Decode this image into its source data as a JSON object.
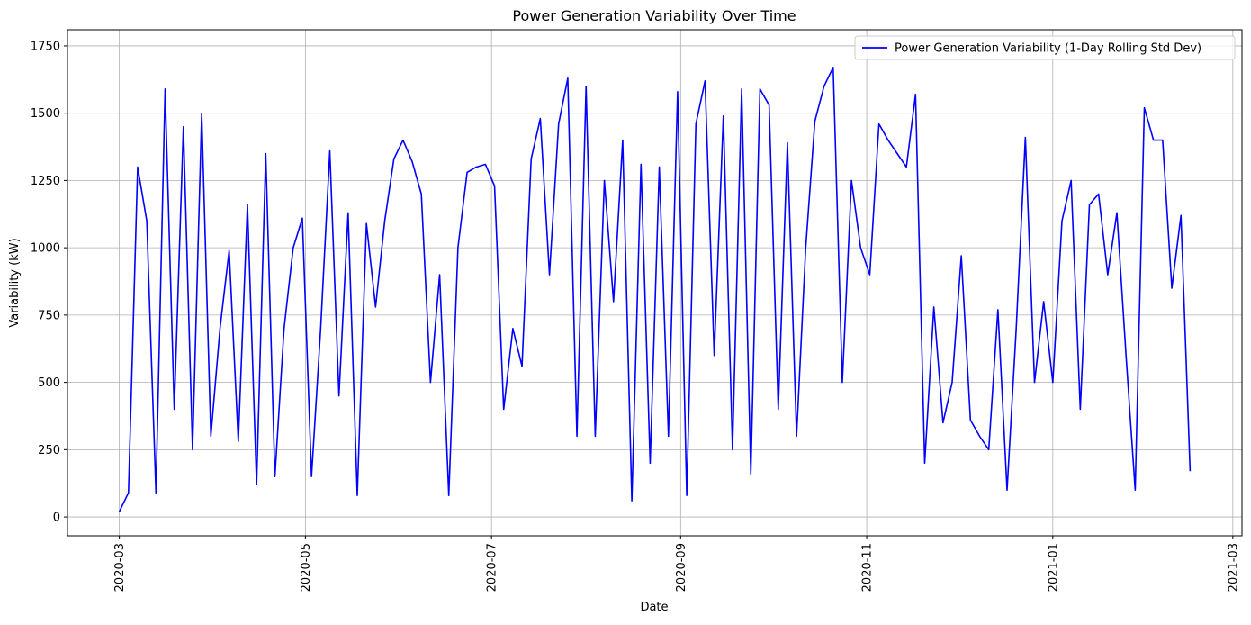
{
  "chart_data": {
    "type": "line",
    "title": "Power Generation Variability Over Time",
    "xlabel": "Date",
    "ylabel": "Variability (kW)",
    "x": [
      "2020-03-01",
      "2020-03-04",
      "2020-03-07",
      "2020-03-10",
      "2020-03-13",
      "2020-03-16",
      "2020-03-19",
      "2020-03-22",
      "2020-03-25",
      "2020-03-28",
      "2020-03-31",
      "2020-04-03",
      "2020-04-06",
      "2020-04-09",
      "2020-04-12",
      "2020-04-15",
      "2020-04-18",
      "2020-04-21",
      "2020-04-24",
      "2020-04-27",
      "2020-04-30",
      "2020-05-03",
      "2020-05-06",
      "2020-05-09",
      "2020-05-12",
      "2020-05-15",
      "2020-05-18",
      "2020-05-21",
      "2020-05-24",
      "2020-05-27",
      "2020-05-30",
      "2020-06-02",
      "2020-06-05",
      "2020-06-08",
      "2020-06-11",
      "2020-06-14",
      "2020-06-17",
      "2020-06-20",
      "2020-06-23",
      "2020-06-26",
      "2020-06-29",
      "2020-07-02",
      "2020-07-05",
      "2020-07-08",
      "2020-07-11",
      "2020-07-14",
      "2020-07-17",
      "2020-07-20",
      "2020-07-23",
      "2020-07-26",
      "2020-07-29",
      "2020-08-01",
      "2020-08-04",
      "2020-08-07",
      "2020-08-10",
      "2020-08-13",
      "2020-08-16",
      "2020-08-19",
      "2020-08-22",
      "2020-08-25",
      "2020-08-28",
      "2020-08-31",
      "2020-09-03",
      "2020-09-06",
      "2020-09-09",
      "2020-09-12",
      "2020-09-15",
      "2020-09-18",
      "2020-09-21",
      "2020-09-24",
      "2020-09-27",
      "2020-09-30",
      "2020-10-03",
      "2020-10-06",
      "2020-10-09",
      "2020-10-12",
      "2020-10-15",
      "2020-10-18",
      "2020-10-21",
      "2020-10-24",
      "2020-10-27",
      "2020-10-30",
      "2020-11-02",
      "2020-11-05",
      "2020-11-08",
      "2020-11-11",
      "2020-11-14",
      "2020-11-17",
      "2020-11-20",
      "2020-11-23",
      "2020-11-26",
      "2020-11-29",
      "2020-12-02",
      "2020-12-05",
      "2020-12-08",
      "2020-12-11",
      "2020-12-14",
      "2020-12-17",
      "2020-12-20",
      "2020-12-23",
      "2020-12-26",
      "2020-12-29",
      "2021-01-01",
      "2021-01-04",
      "2021-01-07",
      "2021-01-10",
      "2021-01-13",
      "2021-01-16",
      "2021-01-19",
      "2021-01-22",
      "2021-01-25",
      "2021-01-28",
      "2021-01-31",
      "2021-02-03",
      "2021-02-06",
      "2021-02-09",
      "2021-02-12",
      "2021-02-15"
    ],
    "series": [
      {
        "name": "Power Generation Variability (1-Day Rolling Std Dev)",
        "color": "#0000ff",
        "values": [
          20,
          90,
          1300,
          1100,
          90,
          1590,
          400,
          1450,
          250,
          1500,
          300,
          700,
          990,
          280,
          1160,
          120,
          1350,
          150,
          700,
          1000,
          1110,
          150,
          700,
          1360,
          450,
          1130,
          80,
          1090,
          780,
          1100,
          1330,
          1400,
          1320,
          1200,
          500,
          900,
          80,
          1000,
          1280,
          1300,
          1310,
          1230,
          400,
          700,
          560,
          1330,
          1480,
          900,
          1460,
          1630,
          300,
          1600,
          300,
          1250,
          800,
          1400,
          60,
          1310,
          200,
          1300,
          300,
          1580,
          80,
          1460,
          1620,
          600,
          1490,
          250,
          1590,
          160,
          1590,
          1530,
          400,
          1390,
          300,
          1000,
          1470,
          1600,
          1670,
          500,
          1250,
          1000,
          900,
          1460,
          1400,
          1350,
          1300,
          1570,
          200,
          780,
          350,
          500,
          970,
          360,
          300,
          250,
          770,
          100,
          700,
          1410,
          500,
          800,
          500,
          1100,
          1250,
          400,
          1160,
          1200,
          900,
          1130,
          600,
          100,
          1520,
          1400,
          1400,
          850,
          1120,
          170
        ]
      }
    ],
    "xlim": [
      "2020-02-13",
      "2021-03-04"
    ],
    "xticks": [
      {
        "value": "2020-03-01",
        "label": "2020-03"
      },
      {
        "value": "2020-05-01",
        "label": "2020-05"
      },
      {
        "value": "2020-07-01",
        "label": "2020-07"
      },
      {
        "value": "2020-09-01",
        "label": "2020-09"
      },
      {
        "value": "2020-11-01",
        "label": "2020-11"
      },
      {
        "value": "2021-01-01",
        "label": "2021-01"
      },
      {
        "value": "2021-03-01",
        "label": "2021-03"
      }
    ],
    "ylim": [
      -70,
      1810
    ],
    "yticks": [
      0,
      250,
      500,
      750,
      1000,
      1250,
      1500,
      1750
    ],
    "grid": true,
    "legend": "upper right"
  }
}
